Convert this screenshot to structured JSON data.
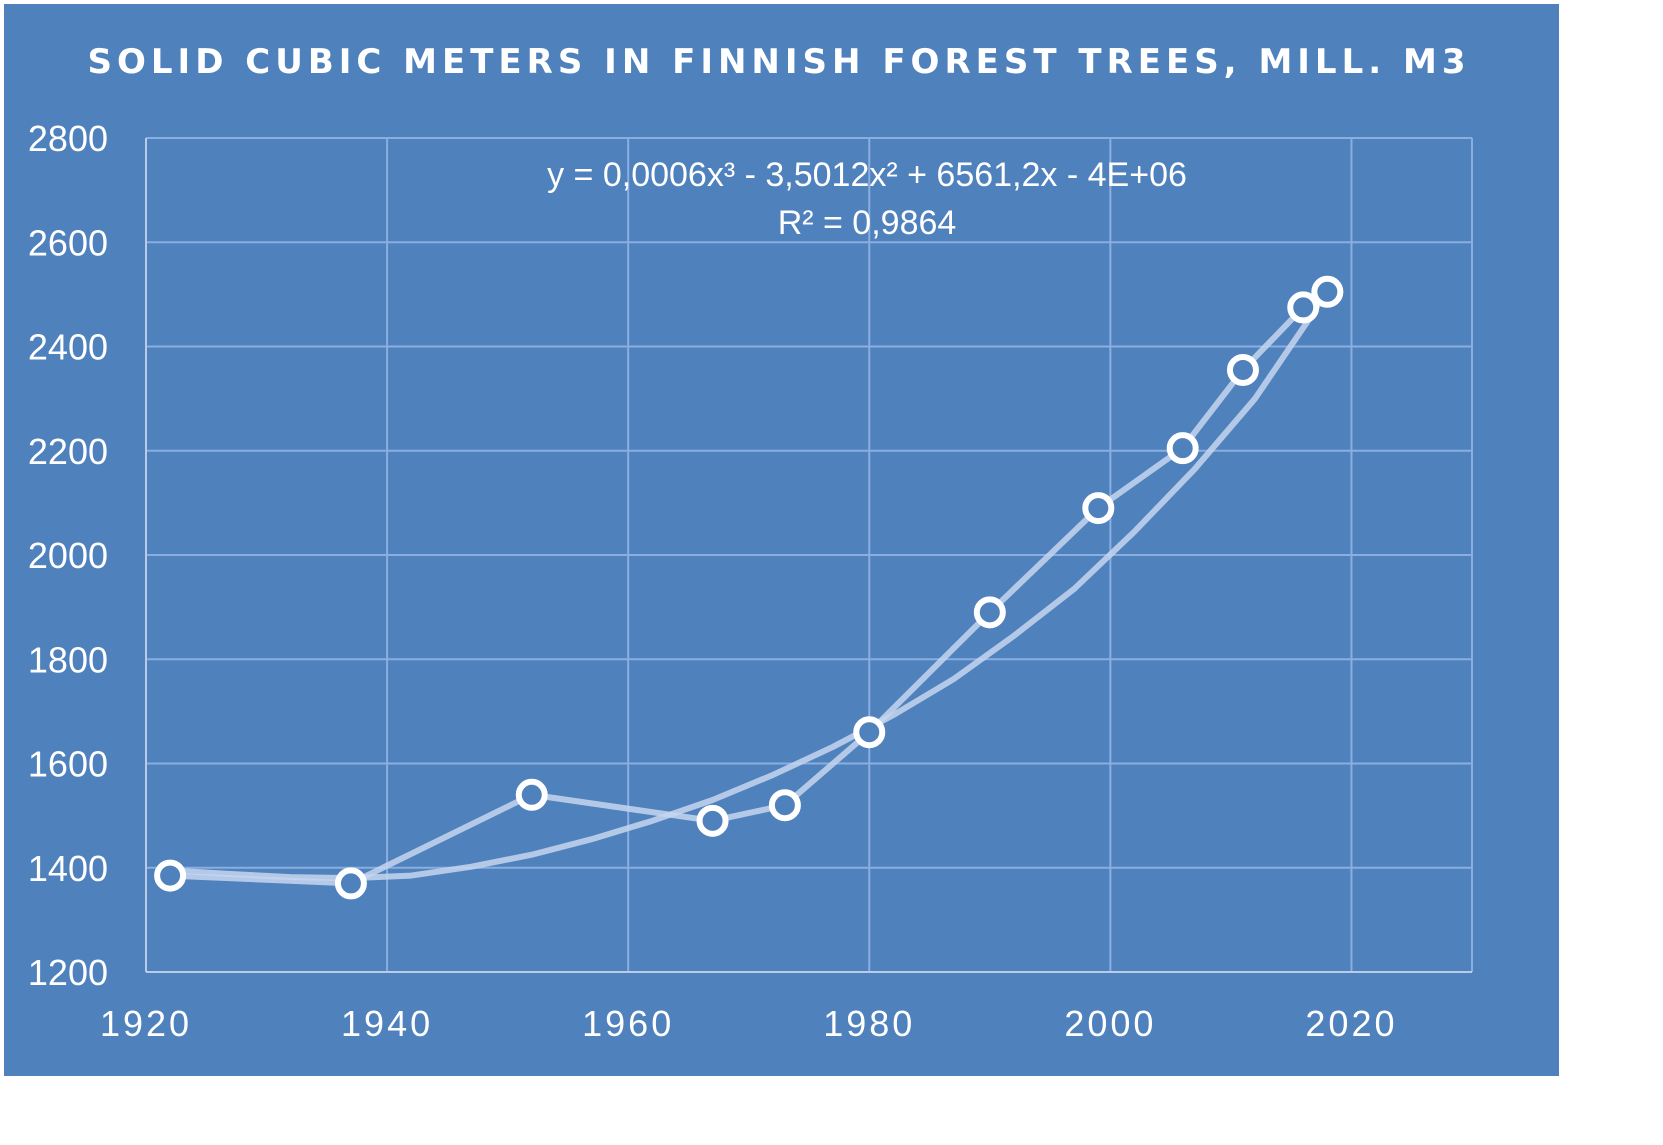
{
  "chart_data": {
    "type": "scatter",
    "title": "SOLID CUBIC METERS IN FINNISH FOREST TREES, MILL. M3",
    "xlabel": "",
    "ylabel": "",
    "xlim": [
      1920,
      2030
    ],
    "ylim": [
      1200,
      2800
    ],
    "x_ticks": [
      "1920",
      "1940",
      "1960",
      "1980",
      "2000",
      "2020"
    ],
    "y_ticks": [
      "1200",
      "1400",
      "1600",
      "1800",
      "2000",
      "2200",
      "2400",
      "2600",
      "2800"
    ],
    "grid": true,
    "legend": "none",
    "colors": {
      "background": "#4f81bd",
      "frame": "#ffffff",
      "grid": "#8aaee0",
      "series": "#c5d6ee",
      "marker_fill": "#4f81bd",
      "marker_stroke": "#ffffff"
    },
    "series": [
      {
        "x": [
          1922,
          1937,
          1952,
          1967,
          1973,
          1980,
          1990,
          1999,
          2006,
          2011,
          2016,
          2018
        ],
        "y": [
          1385,
          1370,
          1540,
          1490,
          1520,
          1660,
          1890,
          2090,
          2205,
          2355,
          2475,
          2505
        ]
      }
    ],
    "trendline": {
      "type": "polynomial",
      "order": 3,
      "equation_lines": [
        "y = 0,0006x³ - 3,5012x² + 6561,2x - 4E+06",
        "R² = 0,9864"
      ],
      "x": [
        1922,
        1927,
        1932,
        1937,
        1942,
        1947,
        1952,
        1957,
        1962,
        1967,
        1972,
        1977,
        1982,
        1987,
        1992,
        1997,
        2002,
        2007,
        2012,
        2017,
        2018
      ],
      "y": [
        1395,
        1388,
        1382,
        1380,
        1385,
        1402,
        1425,
        1455,
        1490,
        1530,
        1578,
        1632,
        1693,
        1762,
        1845,
        1935,
        2045,
        2165,
        2300,
        2470,
        2520
      ]
    }
  }
}
